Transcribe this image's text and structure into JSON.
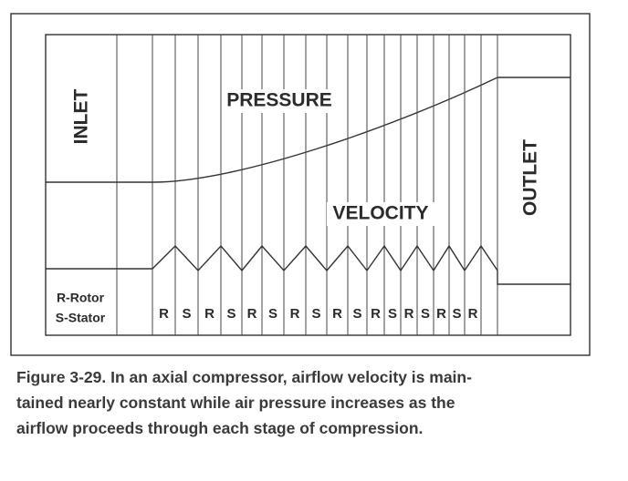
{
  "figure": {
    "inlet": "INLET",
    "outlet": "OUTLET",
    "pressure": "PRESSURE",
    "velocity": "VELOCITY",
    "legend": [
      "R-Rotor",
      "S-Stator"
    ],
    "stages": [
      "R",
      "S",
      "R",
      "S",
      "R",
      "S",
      "R",
      "S",
      "R",
      "S",
      "R",
      "S",
      "R",
      "S",
      "R",
      "S",
      "R"
    ],
    "caption": [
      "Figure 3-29. In an axial compressor, airflow velocity is main-",
      "tained nearly constant while air pressure increases as the",
      "airflow proceeds through each stage of compression."
    ]
  }
}
